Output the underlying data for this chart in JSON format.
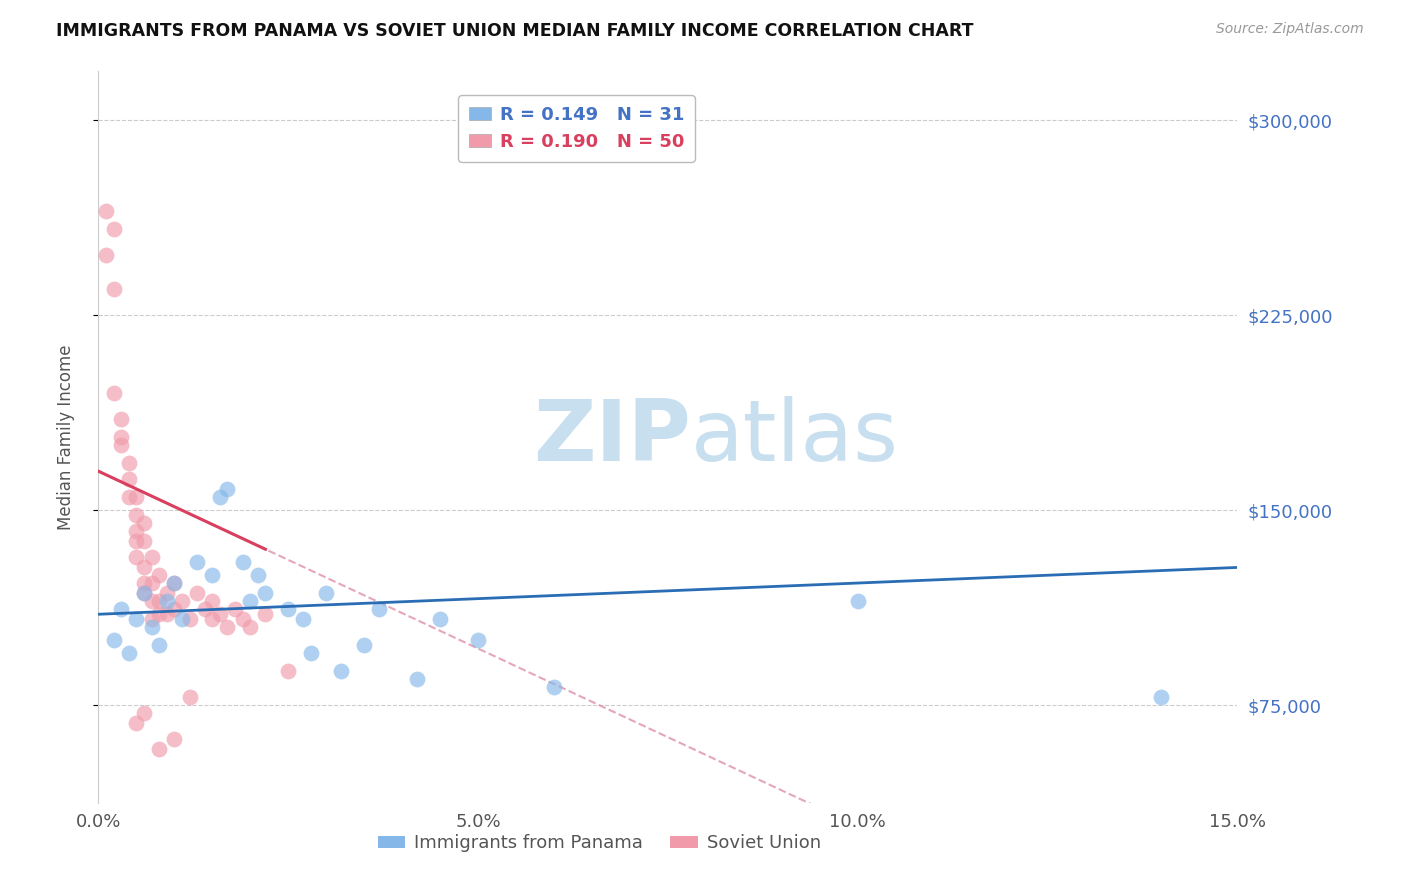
{
  "title": "IMMIGRANTS FROM PANAMA VS SOVIET UNION MEDIAN FAMILY INCOME CORRELATION CHART",
  "source": "Source: ZipAtlas.com",
  "ylabel": "Median Family Income",
  "xlim": [
    0.0,
    0.15
  ],
  "ylim": [
    37500,
    318750
  ],
  "yticks": [
    75000,
    150000,
    225000,
    300000
  ],
  "ytick_labels": [
    "$75,000",
    "$150,000",
    "$225,000",
    "$300,000"
  ],
  "xticks": [
    0.0,
    0.05,
    0.1,
    0.15
  ],
  "xtick_labels": [
    "0.0%",
    "5.0%",
    "10.0%",
    "15.0%"
  ],
  "panama_color": "#85b8e8",
  "soviet_color": "#f09aaa",
  "panama_line_color": "#2a6db5",
  "soviet_line_color": "#d94060",
  "soviet_dash_color": "#e090a8",
  "watermark_color": "#c8dff0",
  "panama_r": 0.149,
  "panama_n": 31,
  "soviet_r": 0.19,
  "soviet_n": 50,
  "panama_points": [
    [
      0.002,
      100000
    ],
    [
      0.003,
      112000
    ],
    [
      0.004,
      95000
    ],
    [
      0.005,
      108000
    ],
    [
      0.006,
      118000
    ],
    [
      0.007,
      105000
    ],
    [
      0.008,
      98000
    ],
    [
      0.009,
      115000
    ],
    [
      0.01,
      122000
    ],
    [
      0.011,
      108000
    ],
    [
      0.013,
      130000
    ],
    [
      0.015,
      125000
    ],
    [
      0.016,
      155000
    ],
    [
      0.017,
      158000
    ],
    [
      0.019,
      130000
    ],
    [
      0.02,
      115000
    ],
    [
      0.021,
      125000
    ],
    [
      0.022,
      118000
    ],
    [
      0.025,
      112000
    ],
    [
      0.027,
      108000
    ],
    [
      0.028,
      95000
    ],
    [
      0.03,
      118000
    ],
    [
      0.032,
      88000
    ],
    [
      0.035,
      98000
    ],
    [
      0.037,
      112000
    ],
    [
      0.042,
      85000
    ],
    [
      0.045,
      108000
    ],
    [
      0.05,
      100000
    ],
    [
      0.06,
      82000
    ],
    [
      0.1,
      115000
    ],
    [
      0.14,
      78000
    ]
  ],
  "soviet_points": [
    [
      0.001,
      265000
    ],
    [
      0.001,
      248000
    ],
    [
      0.002,
      235000
    ],
    [
      0.002,
      258000
    ],
    [
      0.002,
      195000
    ],
    [
      0.003,
      185000
    ],
    [
      0.003,
      175000
    ],
    [
      0.003,
      178000
    ],
    [
      0.004,
      168000
    ],
    [
      0.004,
      155000
    ],
    [
      0.004,
      162000
    ],
    [
      0.005,
      155000
    ],
    [
      0.005,
      148000
    ],
    [
      0.005,
      142000
    ],
    [
      0.005,
      138000
    ],
    [
      0.005,
      132000
    ],
    [
      0.006,
      145000
    ],
    [
      0.006,
      138000
    ],
    [
      0.006,
      128000
    ],
    [
      0.006,
      122000
    ],
    [
      0.006,
      118000
    ],
    [
      0.007,
      132000
    ],
    [
      0.007,
      122000
    ],
    [
      0.007,
      115000
    ],
    [
      0.007,
      108000
    ],
    [
      0.008,
      125000
    ],
    [
      0.008,
      115000
    ],
    [
      0.008,
      110000
    ],
    [
      0.009,
      118000
    ],
    [
      0.009,
      110000
    ],
    [
      0.01,
      122000
    ],
    [
      0.01,
      112000
    ],
    [
      0.011,
      115000
    ],
    [
      0.012,
      108000
    ],
    [
      0.013,
      118000
    ],
    [
      0.014,
      112000
    ],
    [
      0.015,
      108000
    ],
    [
      0.015,
      115000
    ],
    [
      0.016,
      110000
    ],
    [
      0.017,
      105000
    ],
    [
      0.018,
      112000
    ],
    [
      0.019,
      108000
    ],
    [
      0.02,
      105000
    ],
    [
      0.022,
      110000
    ],
    [
      0.005,
      68000
    ],
    [
      0.006,
      72000
    ],
    [
      0.008,
      58000
    ],
    [
      0.01,
      62000
    ],
    [
      0.012,
      78000
    ],
    [
      0.025,
      88000
    ]
  ]
}
